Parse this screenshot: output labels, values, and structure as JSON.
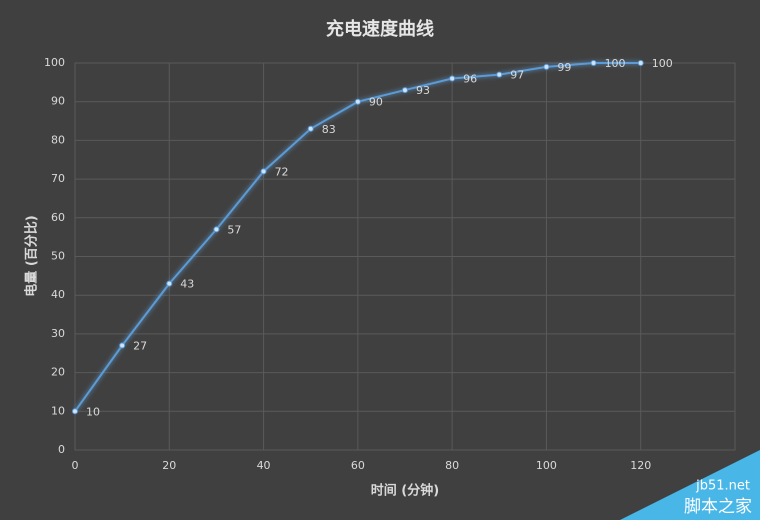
{
  "chart_data": {
    "type": "line",
    "title": "充电速度曲线",
    "x_label": "时间 (分钟)",
    "y_label": "电量 (百分比)",
    "x": [
      0,
      10,
      20,
      30,
      40,
      50,
      60,
      70,
      80,
      90,
      100,
      110,
      120
    ],
    "series": [
      {
        "name": "电量",
        "color": "#5b9bd5",
        "values": [
          10,
          27,
          43,
          57,
          72,
          83,
          90,
          93,
          96,
          97,
          99,
          100,
          100
        ]
      }
    ],
    "xlim": [
      0,
      140
    ],
    "xticks": [
      0,
      20,
      40,
      60,
      80,
      100,
      120
    ],
    "ylim": [
      0,
      100
    ],
    "yticks": [
      0,
      10,
      20,
      30,
      40,
      50,
      60,
      70,
      80,
      90,
      100
    ],
    "grid": true
  },
  "watermark": {
    "site": "jb51.net",
    "name": "脚本之家"
  }
}
